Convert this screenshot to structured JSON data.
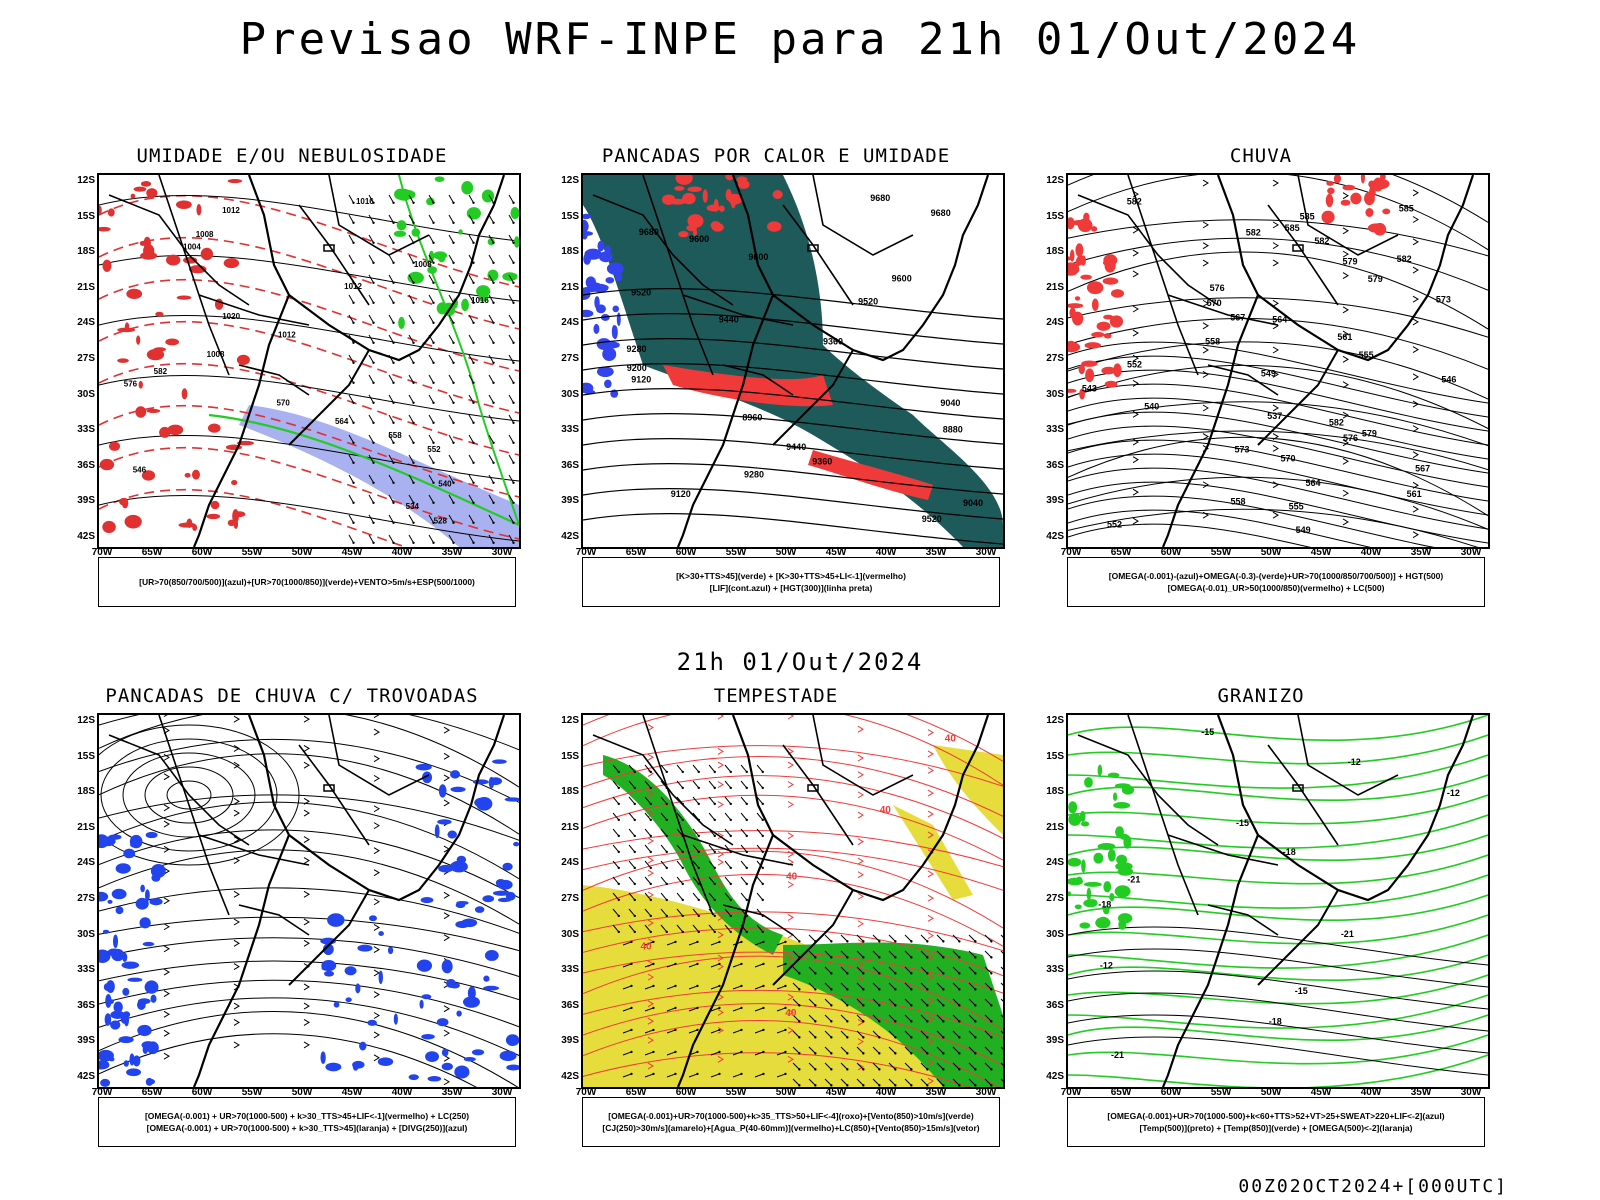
{
  "title": "Previsao WRF-INPE  para 21h 01/Out/2024",
  "mid_date": "21h 01/Out/2024",
  "footer": "00Z02OCT2024+[000UTC]",
  "lat_labels": [
    "12S",
    "15S",
    "18S",
    "21S",
    "24S",
    "27S",
    "30S",
    "33S",
    "36S",
    "39S",
    "42S"
  ],
  "lon_labels": [
    "70W",
    "65W",
    "60W",
    "55W",
    "50W",
    "45W",
    "40W",
    "35W",
    "30W"
  ],
  "panels": [
    {
      "title": "UMIDADE E/OU NEBULOSIDADE",
      "legend_lines": [
        "[UR>70(850/700/500)](azul)+[UR>70(1000/850)](verde)+VENTO>5m/s+ESP(500/1000)"
      ],
      "contour_labels": [
        "1016",
        "1012",
        "1008",
        "1004",
        "1008",
        "1012",
        "1016",
        "1020",
        "1012",
        "1008",
        "582",
        "576",
        "570",
        "564",
        "558",
        "552",
        "546",
        "540",
        "534",
        "528"
      ],
      "colors": {
        "fill": "#9aa3ee",
        "line": "#22cc22",
        "contour": "#e03030"
      }
    },
    {
      "title": "PANCADAS POR CALOR E UMIDADE",
      "legend_lines": [
        "[K>30+TTS>45](verde) + [K>30+TTS>45+LI<-1](vermelho)",
        "[LIF](cont.azul) + [HGT(300)](linha preta)"
      ],
      "contour_labels": [
        "9680",
        "9680",
        "9680",
        "9600",
        "9600",
        "9600",
        "9520",
        "9520",
        "9440",
        "9360",
        "9280",
        "9200",
        "9120",
        "9040",
        "8960",
        "8880",
        "9440",
        "9360",
        "9280",
        "9120",
        "9040",
        "9520"
      ],
      "colors": {
        "fill": "#1f5a5a",
        "alert": "#f03a3a",
        "line": "#3344ee"
      }
    },
    {
      "title": "CHUVA",
      "legend_lines": [
        "[OMEGA(-0.001)-(azul)+OMEGA(-0.3)-(verde)+UR>70(1000/850/700/500)] + HGT(500)",
        "[OMEGA(-0.01)_UR>50(1000/850)(vermelho) + LC(500)"
      ],
      "contour_labels": [
        "582",
        "585",
        "585",
        "585",
        "582",
        "582",
        "582",
        "579",
        "579",
        "576",
        "573",
        "570",
        "567",
        "564",
        "561",
        "558",
        "555",
        "552",
        "549",
        "546",
        "543",
        "540",
        "537",
        "582",
        "579",
        "576",
        "573",
        "570",
        "567",
        "564",
        "561",
        "558",
        "555",
        "552",
        "549"
      ],
      "colors": {
        "alert": "#f03a3a"
      }
    },
    {
      "title": "PANCADAS DE CHUVA C/ TROVOADAS",
      "legend_lines": [
        "[OMEGA(-0.001) + UR>70(1000-500) + k>30_TTS>45+LIF<-1](vermelho) + LC(250)",
        "[OMEGA(-0.001) + UR>70(1000-500) + k>30_TTS>45](laranja) + [DIVG(250)](azul)"
      ],
      "contour_labels": [],
      "colors": {
        "line": "#2244ee"
      }
    },
    {
      "title": "TEMPESTADE",
      "legend_lines": [
        "[OMEGA(-0.001)+UR>70(1000-500)+k>35_TTS>50+LIF<-4](roxo)+[Vento(850)>10m/s](verde)",
        "[CJ(250)>30m/s](amarelo)+[Agua_P(40-60mm)](vermelho)+LC(850)+[Vento(850)>15m/s](vetor)"
      ],
      "contour_labels": [
        "40",
        "40",
        "40",
        "40",
        "40"
      ],
      "colors": {
        "yellow": "#e6dc3c",
        "green": "#22b022",
        "line": "#f03a3a"
      }
    },
    {
      "title": "GRANIZO",
      "legend_lines": [
        "[OMEGA(-0.001)+UR>70(1000-500)+k<60+TTS>52+VT>25+SWEAT>220+LIF<-2](azul)",
        "[Temp(500)](preto) + [Temp(850)](verde) + [OMEGA(500)<-2](laranja)"
      ],
      "contour_labels": [
        "-15",
        "-12",
        "-12",
        "-15",
        "-18",
        "-21",
        "-18",
        "-21",
        "-12",
        "-15",
        "-18",
        "-21"
      ],
      "colors": {
        "line": "#22cc22"
      }
    }
  ]
}
